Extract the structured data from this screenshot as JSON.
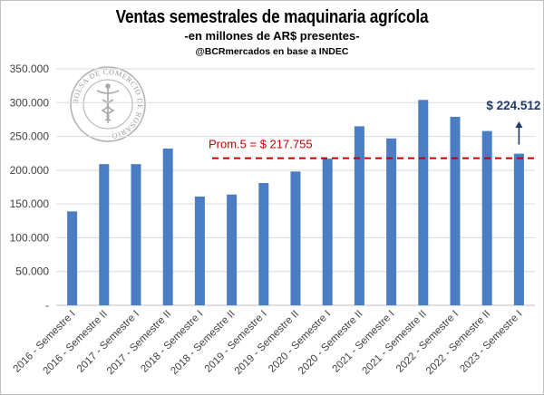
{
  "chart_data": {
    "type": "bar",
    "title": "Ventas semestrales de maquinaria agrícola",
    "subtitle": "-en millones de AR$ presentes-",
    "source": "@BCRmercados en base a INDEC",
    "categories": [
      "2016 - Semestre I",
      "2016 - Semestre II",
      "2017 - Semestre I",
      "2017 - Semestre II",
      "2018 - Semestre I",
      "2018 - Semestre II",
      "2019 - Semestre I",
      "2019 - Semestre II",
      "2020 - Semestre I",
      "2020 - Semestre II",
      "2021 - Semestre I",
      "2021 - Semestre II",
      "2022 - Semestre I",
      "2022 - Semestre II",
      "2023 - Semestre I"
    ],
    "values": [
      139000,
      209000,
      209000,
      232000,
      161000,
      164000,
      181000,
      198000,
      217000,
      265000,
      247000,
      304000,
      279000,
      258000,
      224512
    ],
    "ylim": [
      0,
      350000
    ],
    "yticks": [
      0,
      50000,
      100000,
      150000,
      200000,
      250000,
      300000,
      350000
    ],
    "ytick_labels": [
      "-",
      "50.000",
      "100.000",
      "150.000",
      "200.000",
      "250.000",
      "300.000",
      "350.000"
    ],
    "grid": true,
    "average": {
      "value": 217755,
      "label": "Prom.5 = $ 217.755"
    },
    "last_value_label": "$ 224.512",
    "colors": {
      "bar": "#4a7dc4",
      "average_line": "#c00000",
      "last_label": "#1f3a68",
      "grid": "#d9d9d9"
    }
  },
  "watermark": {
    "text": "BOLSA DE COMERCIO DE ROSARIO"
  }
}
